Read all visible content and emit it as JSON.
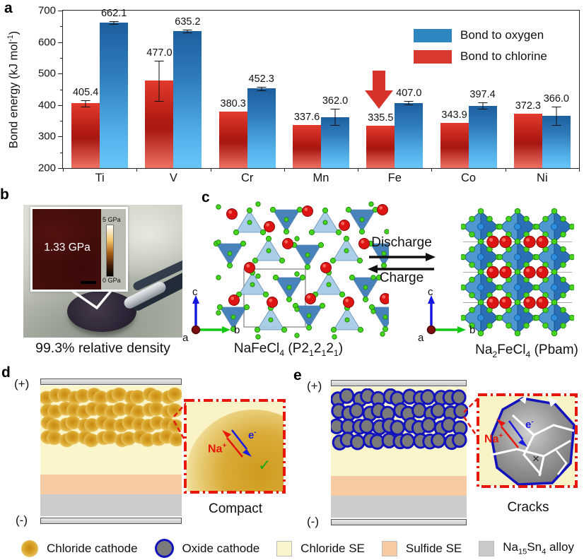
{
  "colors": {
    "oxygen_blue": "#2E86C1",
    "chlorine_red": "#D93A30",
    "chloride_se": "#FAF5CA",
    "sulfide_se": "#F6CBA4",
    "alloy_gray": "#CCCCCC",
    "cathode_gold": "#D9A62C",
    "oxide_gray": "#7A7A7A",
    "oxide_ring_blue": "#1313BE"
  },
  "panel_a": {
    "letter": "a"
  },
  "chart_data": {
    "type": "bar",
    "title": "",
    "ylabel": "Bond energy (kJ mol^-1^)",
    "categories": [
      "Ti",
      "V",
      "Cr",
      "Mn",
      "Fe",
      "Co",
      "Ni"
    ],
    "series": [
      {
        "name": "Bond to chlorine",
        "color": "#D93A30",
        "values": [
          405.4,
          477.0,
          380.3,
          337.6,
          335.5,
          343.9,
          372.3
        ],
        "errors": [
          10,
          63,
          0,
          0,
          0,
          0,
          0
        ]
      },
      {
        "name": "Bond to oxygen",
        "color": "#2E86C1",
        "values": [
          662.1,
          635.2,
          452.3,
          362.0,
          407.0,
          397.4,
          366.0
        ],
        "errors": [
          4,
          4,
          5,
          26,
          5,
          10,
          30
        ]
      }
    ],
    "ylim": [
      200,
      700
    ],
    "yticks": [
      200,
      300,
      400,
      500,
      600,
      700
    ],
    "yticks_minor": [
      250,
      350,
      450,
      550,
      650
    ],
    "grid": false,
    "legend_position": "top-right",
    "annotation": {
      "category": "Fe",
      "marker": "red-down-arrow"
    }
  },
  "panel_b": {
    "letter": "b",
    "inset_value": "1.33 GPa",
    "colorbar_top": "5 GPa",
    "colorbar_bottom": "0 GPa",
    "caption": "99.3% relative density"
  },
  "panel_c": {
    "letter": "c",
    "reaction_forward": "Discharge",
    "reaction_backward": "Charge",
    "left_label": "NaFeCl~4~ (P2~1~2~1~2~1~)",
    "right_label": "Na~2~FeCl~4~ (Pbam)",
    "axis_up": "c",
    "axis_right": "b",
    "axis_origin": "a"
  },
  "panel_d": {
    "letter": "d",
    "electrode_pos": "(+)",
    "electrode_neg": "(-)",
    "ion_label": "Na^+^",
    "electron_label": "e^-^",
    "status_mark": "✓",
    "caption": "Compact"
  },
  "panel_e": {
    "letter": "e",
    "electrode_pos": "(+)",
    "electrode_neg": "(-)",
    "ion_label": "Na^+^",
    "electron_label": "e^-^",
    "status_mark": "×",
    "caption": "Cracks"
  },
  "legend": {
    "items": [
      {
        "icon": "chloride-cathode-sphere",
        "label": "Chloride cathode"
      },
      {
        "icon": "oxide-cathode-circle",
        "label": "Oxide cathode"
      },
      {
        "icon": "chloride-se-square",
        "label": "Chloride SE"
      },
      {
        "icon": "sulfide-se-square",
        "label": "Sulfide SE"
      },
      {
        "icon": "alloy-square",
        "label": "Na~15~Sn~4~ alloy"
      }
    ]
  }
}
